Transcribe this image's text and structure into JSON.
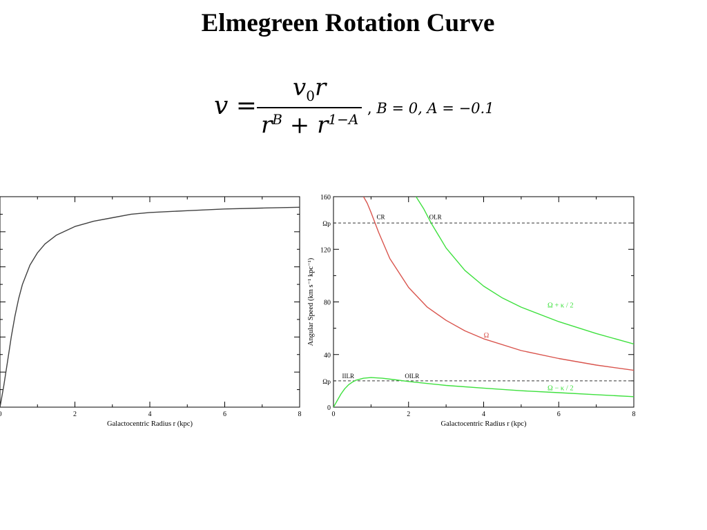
{
  "slide": {
    "title": "Elmegreen Rotation Curve",
    "formula": {
      "lhs": "v =",
      "numerator_v": "v",
      "numerator_sub": "0",
      "numerator_r": "r",
      "den_r1": "r",
      "den_exp1": "B",
      "den_plus": "+",
      "den_r2": "r",
      "den_exp2": "1−A",
      "comma": ",",
      "params": "B = 0, A = −0.1"
    }
  },
  "chart_data": [
    {
      "type": "line",
      "title": "",
      "xlabel": "Galactocentric Radius r (kpc)",
      "ylabel": "",
      "xlim": [
        0,
        8
      ],
      "ylim": [
        0,
        1.2
      ],
      "xticks": [
        0,
        2,
        4,
        6,
        8
      ],
      "xtick_labels": [
        "0",
        "2",
        "4",
        "6",
        "8"
      ],
      "series": [
        {
          "color": "#404040",
          "x": [
            0.0,
            0.1,
            0.2,
            0.3,
            0.4,
            0.5,
            0.6,
            0.8,
            1.0,
            1.2,
            1.5,
            2.0,
            2.5,
            3.0,
            3.5,
            4.0,
            5.0,
            6.0,
            7.0,
            8.0
          ],
          "y": [
            0.0,
            0.12,
            0.26,
            0.4,
            0.52,
            0.62,
            0.7,
            0.81,
            0.88,
            0.93,
            0.98,
            1.03,
            1.06,
            1.08,
            1.1,
            1.11,
            1.12,
            1.13,
            1.135,
            1.14
          ]
        }
      ]
    },
    {
      "type": "line",
      "title": "",
      "xlabel": "Galactocentric Radius r (kpc)",
      "ylabel": "Angular Speed (km s⁻¹ kpc⁻¹)",
      "xlim": [
        0,
        8
      ],
      "ylim": [
        0,
        160
      ],
      "xticks": [
        0,
        2,
        4,
        6,
        8
      ],
      "xtick_labels": [
        "0",
        "2",
        "4",
        "6",
        "8"
      ],
      "yticks": [
        0,
        40,
        80,
        120,
        160
      ],
      "ytick_labels": [
        "0",
        "40",
        "80",
        "120",
        "160"
      ],
      "pattern_speeds": [
        {
          "label": "Ωp",
          "value": 140
        },
        {
          "label": "Ωp",
          "value": 20
        }
      ],
      "resonance_labels": [
        {
          "text": "CR",
          "x": 1.15,
          "y": 142
        },
        {
          "text": "OLR",
          "x": 2.55,
          "y": 142
        },
        {
          "text": "IILR",
          "x": 0.23,
          "y": 21
        },
        {
          "text": "OILR",
          "x": 1.9,
          "y": 21
        }
      ],
      "series": [
        {
          "name": "Ω",
          "color": "#d9544d",
          "label_pos": [
            4.0,
            55
          ],
          "x": [
            0.8,
            0.9,
            1.0,
            1.2,
            1.5,
            2.0,
            2.5,
            3.0,
            3.5,
            4.0,
            5.0,
            6.0,
            7.0,
            8.0
          ],
          "y": [
            160,
            155,
            148,
            133,
            113,
            91,
            76,
            66,
            58,
            52,
            43,
            37,
            32,
            28
          ]
        },
        {
          "name": "Ω + κ / 2",
          "color": "#3de03d",
          "label_pos": [
            5.7,
            78
          ],
          "x": [
            2.2,
            2.4,
            2.6,
            3.0,
            3.5,
            4.0,
            4.5,
            5.0,
            6.0,
            7.0,
            8.0
          ],
          "y": [
            160,
            151,
            140,
            121,
            104,
            92,
            83,
            76,
            65,
            56,
            48
          ]
        },
        {
          "name": "Ω − κ / 2",
          "color": "#3de03d",
          "label_pos": [
            5.7,
            15
          ],
          "x": [
            0.0,
            0.1,
            0.2,
            0.3,
            0.4,
            0.5,
            0.6,
            0.8,
            1.0,
            1.3,
            1.6,
            2.0,
            2.5,
            3.0,
            4.0,
            5.0,
            6.0,
            7.0,
            8.0
          ],
          "y": [
            0,
            5,
            10,
            14,
            17,
            19,
            20.5,
            22,
            22.5,
            22,
            21,
            19.5,
            18,
            16.5,
            14.5,
            12.5,
            11,
            9.5,
            8
          ]
        }
      ]
    }
  ]
}
